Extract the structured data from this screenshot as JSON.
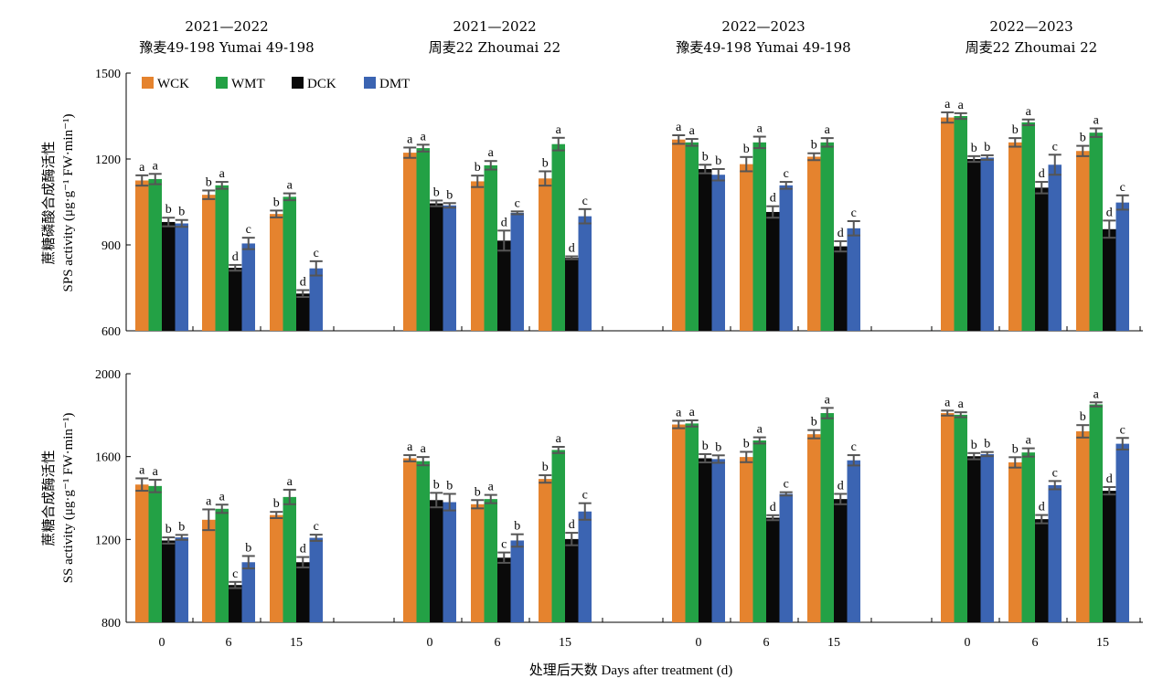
{
  "panel_titles": [
    {
      "line1": "2021—2022",
      "line2": "豫麦49-198 Yumai 49-198"
    },
    {
      "line1": "2021—2022",
      "line2": "周麦22 Zhoumai 22"
    },
    {
      "line1": "2022—2023",
      "line2": "豫麦49-198 Yumai 49-198"
    },
    {
      "line1": "2022—2023",
      "line2": "周麦22 Zhoumai 22"
    }
  ],
  "x_axis_label": "处理后天数 Days after treatment (d)",
  "colors": {
    "WCK": "#e5832e",
    "WMT": "#23a145",
    "DCK": "#0a0a0a",
    "DMT": "#3b64b2"
  },
  "chart_data": [
    {
      "type": "bar",
      "ylabel_line1": "蔗糖磷酸合成酶活性",
      "ylabel_line2": "SPS activity (μg·g⁻¹ FW·min⁻¹)",
      "ylim": [
        600,
        1500
      ],
      "yticks": [
        600,
        900,
        1200,
        1500
      ],
      "legend": [
        "WCK",
        "WMT",
        "DCK",
        "DMT"
      ],
      "legend_position": "top-left",
      "groups": [
        {
          "panel": 0,
          "day": "0",
          "values": [
            1125,
            1130,
            980,
            975
          ],
          "errors": [
            18,
            18,
            15,
            12
          ],
          "letters": [
            "a",
            "a",
            "b",
            "b"
          ]
        },
        {
          "panel": 0,
          "day": "6",
          "values": [
            1075,
            1108,
            820,
            905
          ],
          "errors": [
            15,
            12,
            10,
            20
          ],
          "letters": [
            "b",
            "a",
            "d",
            "c"
          ]
        },
        {
          "panel": 0,
          "day": "15",
          "values": [
            1008,
            1068,
            730,
            818
          ],
          "errors": [
            12,
            12,
            12,
            25
          ],
          "letters": [
            "b",
            "a",
            "d",
            "c"
          ]
        },
        {
          "panel": 1,
          "day": "0",
          "values": [
            1222,
            1238,
            1045,
            1038
          ],
          "errors": [
            18,
            12,
            10,
            8
          ],
          "letters": [
            "a",
            "a",
            "b",
            "b"
          ]
        },
        {
          "panel": 1,
          "day": "6",
          "values": [
            1122,
            1178,
            915,
            1012
          ],
          "errors": [
            20,
            15,
            35,
            5
          ],
          "letters": [
            "b",
            "a",
            "d",
            "c"
          ]
        },
        {
          "panel": 1,
          "day": "15",
          "values": [
            1132,
            1252,
            855,
            1000
          ],
          "errors": [
            25,
            22,
            5,
            25
          ],
          "letters": [
            "b",
            "a",
            "d",
            "c"
          ]
        },
        {
          "panel": 2,
          "day": "0",
          "values": [
            1268,
            1258,
            1165,
            1145
          ],
          "errors": [
            15,
            12,
            15,
            20
          ],
          "letters": [
            "a",
            "a",
            "b",
            "b"
          ]
        },
        {
          "panel": 2,
          "day": "6",
          "values": [
            1182,
            1258,
            1015,
            1108
          ],
          "errors": [
            25,
            20,
            20,
            12
          ],
          "letters": [
            "b",
            "a",
            "d",
            "c"
          ]
        },
        {
          "panel": 2,
          "day": "15",
          "values": [
            1208,
            1258,
            895,
            958
          ],
          "errors": [
            12,
            15,
            18,
            25
          ],
          "letters": [
            "b",
            "a",
            "d",
            "c"
          ]
        },
        {
          "panel": 3,
          "day": "0",
          "values": [
            1345,
            1350,
            1200,
            1205
          ],
          "errors": [
            18,
            10,
            10,
            8
          ],
          "letters": [
            "a",
            "a",
            "b",
            "b"
          ]
        },
        {
          "panel": 3,
          "day": "6",
          "values": [
            1258,
            1328,
            1100,
            1180
          ],
          "errors": [
            15,
            10,
            20,
            35
          ],
          "letters": [
            "b",
            "a",
            "d",
            "c"
          ]
        },
        {
          "panel": 3,
          "day": "15",
          "values": [
            1228,
            1292,
            955,
            1048
          ],
          "errors": [
            18,
            15,
            30,
            25
          ],
          "letters": [
            "b",
            "a",
            "d",
            "c"
          ]
        }
      ]
    },
    {
      "type": "bar",
      "ylabel_line1": "蔗糖合成酶活性",
      "ylabel_line2": "SS activity (μg·g⁻¹ FW·min⁻¹)",
      "ylim": [
        800,
        2000
      ],
      "yticks": [
        800,
        1200,
        1600,
        2000
      ],
      "groups": [
        {
          "panel": 0,
          "day": "0",
          "values": [
            1465,
            1458,
            1195,
            1210
          ],
          "errors": [
            30,
            30,
            15,
            12
          ],
          "letters": [
            "a",
            "a",
            "b",
            "b"
          ]
        },
        {
          "panel": 0,
          "day": "6",
          "values": [
            1295,
            1348,
            980,
            1090
          ],
          "errors": [
            50,
            20,
            15,
            30
          ],
          "letters": [
            "a",
            "a",
            "c",
            "b"
          ]
        },
        {
          "panel": 0,
          "day": "15",
          "values": [
            1318,
            1405,
            1090,
            1208
          ],
          "errors": [
            15,
            35,
            25,
            15
          ],
          "letters": [
            "b",
            "a",
            "d",
            "c"
          ]
        },
        {
          "panel": 1,
          "day": "0",
          "values": [
            1592,
            1578,
            1390,
            1380
          ],
          "errors": [
            15,
            20,
            35,
            40
          ],
          "letters": [
            "a",
            "a",
            "b",
            "b"
          ]
        },
        {
          "panel": 1,
          "day": "6",
          "values": [
            1370,
            1395,
            1112,
            1195
          ],
          "errors": [
            20,
            20,
            25,
            30
          ],
          "letters": [
            "b",
            "a",
            "c",
            "b"
          ]
        },
        {
          "panel": 1,
          "day": "15",
          "values": [
            1492,
            1632,
            1202,
            1335
          ],
          "errors": [
            18,
            15,
            30,
            40
          ],
          "letters": [
            "b",
            "a",
            "d",
            "c"
          ]
        },
        {
          "panel": 2,
          "day": "0",
          "values": [
            1755,
            1760,
            1592,
            1588
          ],
          "errors": [
            18,
            15,
            20,
            18
          ],
          "letters": [
            "a",
            "a",
            "b",
            "b"
          ]
        },
        {
          "panel": 2,
          "day": "6",
          "values": [
            1598,
            1678,
            1305,
            1420
          ],
          "errors": [
            25,
            15,
            12,
            8
          ],
          "letters": [
            "b",
            "a",
            "d",
            "c"
          ]
        },
        {
          "panel": 2,
          "day": "15",
          "values": [
            1708,
            1810,
            1395,
            1582
          ],
          "errors": [
            20,
            25,
            25,
            25
          ],
          "letters": [
            "b",
            "a",
            "d",
            "c"
          ]
        },
        {
          "panel": 3,
          "day": "0",
          "values": [
            1810,
            1802,
            1602,
            1612
          ],
          "errors": [
            12,
            12,
            15,
            10
          ],
          "letters": [
            "a",
            "a",
            "b",
            "b"
          ]
        },
        {
          "panel": 3,
          "day": "6",
          "values": [
            1572,
            1620,
            1298,
            1462
          ],
          "errors": [
            25,
            20,
            20,
            20
          ],
          "letters": [
            "b",
            "a",
            "d",
            "c"
          ]
        },
        {
          "panel": 3,
          "day": "15",
          "values": [
            1722,
            1852,
            1435,
            1662
          ],
          "errors": [
            30,
            10,
            18,
            28
          ],
          "letters": [
            "b",
            "a",
            "d",
            "c"
          ]
        }
      ]
    }
  ]
}
